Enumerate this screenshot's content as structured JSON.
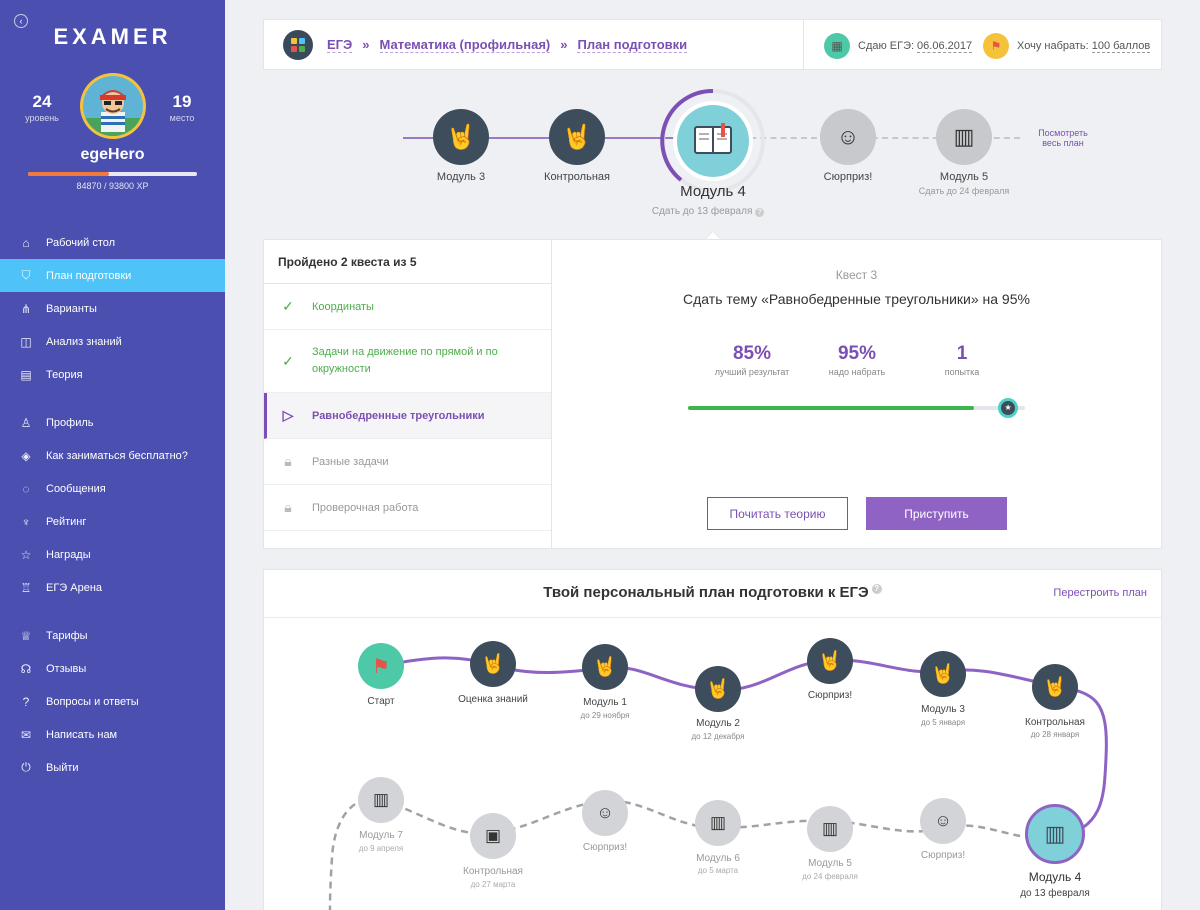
{
  "sidebar": {
    "logo": "EXAMER",
    "level": {
      "value": "24",
      "label": "уровень"
    },
    "place": {
      "value": "19",
      "label": "место"
    },
    "username": "egeHero",
    "xp_text": "84870 / 93800 XP",
    "xp_progress": 0.48,
    "nav": [
      {
        "label": "Рабочий стол",
        "icon": "home-icon"
      },
      {
        "label": "План подготовки",
        "icon": "map-icon"
      },
      {
        "label": "Варианты",
        "icon": "variants-icon"
      },
      {
        "label": "Анализ знаний",
        "icon": "chart-icon"
      },
      {
        "label": "Теория",
        "icon": "book-icon"
      },
      {
        "label": "Профиль",
        "icon": "user-icon"
      },
      {
        "label": "Как заниматься бесплатно?",
        "icon": "tag-icon"
      },
      {
        "label": "Сообщения",
        "icon": "messages-icon"
      },
      {
        "label": "Рейтинг",
        "icon": "cup-icon"
      },
      {
        "label": "Награды",
        "icon": "star-icon"
      },
      {
        "label": "ЕГЭ Арена",
        "icon": "arena-icon"
      },
      {
        "label": "Тарифы",
        "icon": "tariff-icon"
      },
      {
        "label": "Отзывы",
        "icon": "reviews-icon"
      },
      {
        "label": "Вопросы и ответы",
        "icon": "faq-icon"
      },
      {
        "label": "Написать нам",
        "icon": "mail-icon"
      },
      {
        "label": "Выйти",
        "icon": "power-icon"
      }
    ]
  },
  "header": {
    "breadcrumbs": [
      "ЕГЭ",
      "Математика (профильная)",
      "План подготовки"
    ],
    "separator": "»",
    "exam_label": "Сдаю ЕГЭ:",
    "exam_date": "06.06.2017",
    "goal_label": "Хочу набрать:",
    "goal_value": "100 баллов"
  },
  "strip": {
    "nodes": [
      {
        "label": "Модуль 3",
        "icon": "rock-hand-icon"
      },
      {
        "label": "Контрольная",
        "icon": "rock-hand-icon"
      },
      {
        "label": "Модуль 4",
        "sub": "Сдать до 13 февраля",
        "icon": "book-icon"
      },
      {
        "label": "Сюрприз!",
        "icon": "mario-icon"
      },
      {
        "label": "Модуль 5",
        "sub": "Сдать до 24 февраля",
        "icon": "book-icon"
      }
    ],
    "view_plan": "Посмотреть весь план"
  },
  "quest": {
    "summary": "Пройдено 2 квеста из 5",
    "items": [
      {
        "label": "Координаты",
        "state": "done"
      },
      {
        "label": "Задачи на движение по прямой и по окружности",
        "state": "done"
      },
      {
        "label": "Равнобедренные треугольники",
        "state": "current"
      },
      {
        "label": "Разные задачи",
        "state": "locked"
      },
      {
        "label": "Проверочная работа",
        "state": "locked"
      }
    ],
    "number": "Квест 3",
    "title": "Сдать тему «Равнобедренные треугольники» на 95%",
    "stats": [
      {
        "value": "85%",
        "label": "лучший результат"
      },
      {
        "value": "95%",
        "label": "надо набрать"
      },
      {
        "value": "1",
        "label": "попытка"
      }
    ],
    "progress": 0.85,
    "target": 0.95,
    "btn_theory": "Почитать теорию",
    "btn_start": "Приступить"
  },
  "plan": {
    "title": "Твой персональный план подготовки к ЕГЭ",
    "rebuild": "Перестроить план",
    "row1": [
      {
        "label": "Старт",
        "sub": ""
      },
      {
        "label": "Оценка знаний",
        "sub": ""
      },
      {
        "label": "Модуль 1",
        "sub": "до 29 ноября"
      },
      {
        "label": "Модуль 2",
        "sub": "до 12 декабря"
      },
      {
        "label": "Сюрприз!",
        "sub": ""
      },
      {
        "label": "Модуль 3",
        "sub": "до 5 января"
      },
      {
        "label": "Контрольная",
        "sub": "до 28 января"
      }
    ],
    "row2": [
      {
        "label": "Модуль 7",
        "sub": "до 9 апреля"
      },
      {
        "label": "Контрольная",
        "sub": "до 27 марта"
      },
      {
        "label": "Сюрприз!",
        "sub": ""
      },
      {
        "label": "Модуль 6",
        "sub": "до 5 марта"
      },
      {
        "label": "Модуль 5",
        "sub": "до 24 февраля"
      },
      {
        "label": "Сюрприз!",
        "sub": ""
      },
      {
        "label": "Модуль 4",
        "sub": "до 13 февраля"
      }
    ]
  },
  "colors": {
    "sidebar": "#4a4fb0",
    "accent": "#7b4fb3",
    "active": "#4fc3f7",
    "success": "#3cb54a",
    "xp": "#f07a3b"
  }
}
